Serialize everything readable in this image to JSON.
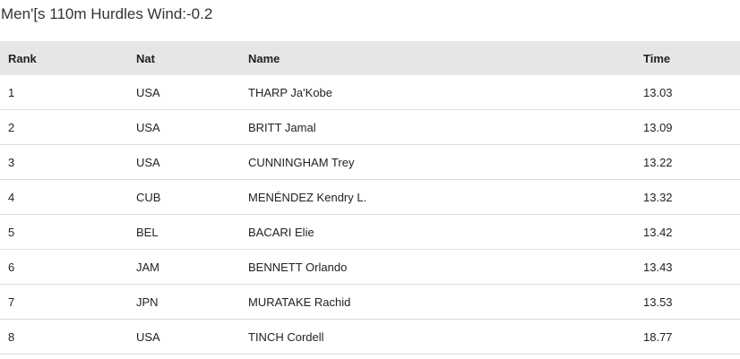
{
  "title": "Men'[s 110m Hurdles Wind:-0.2",
  "table": {
    "header": [
      "Rank",
      "Nat",
      "Name",
      "Time"
    ],
    "rows": [
      [
        "1",
        "USA",
        "THARP Ja'Kobe",
        "13.03"
      ],
      [
        "2",
        "USA",
        "BRITT Jamal",
        "13.09"
      ],
      [
        "3",
        "USA",
        "CUNNINGHAM Trey",
        "13.22"
      ],
      [
        "4",
        "CUB",
        "MENÉNDEZ Kendry L.",
        "13.32"
      ],
      [
        "5",
        "BEL",
        "BACARI Elie",
        "13.42"
      ],
      [
        "6",
        "JAM",
        "BENNETT Orlando",
        "13.43"
      ],
      [
        "7",
        "JPN",
        "MURATAKE Rachid",
        "13.53"
      ],
      [
        "8",
        "USA",
        "TINCH Cordell",
        "18.77"
      ]
    ]
  }
}
